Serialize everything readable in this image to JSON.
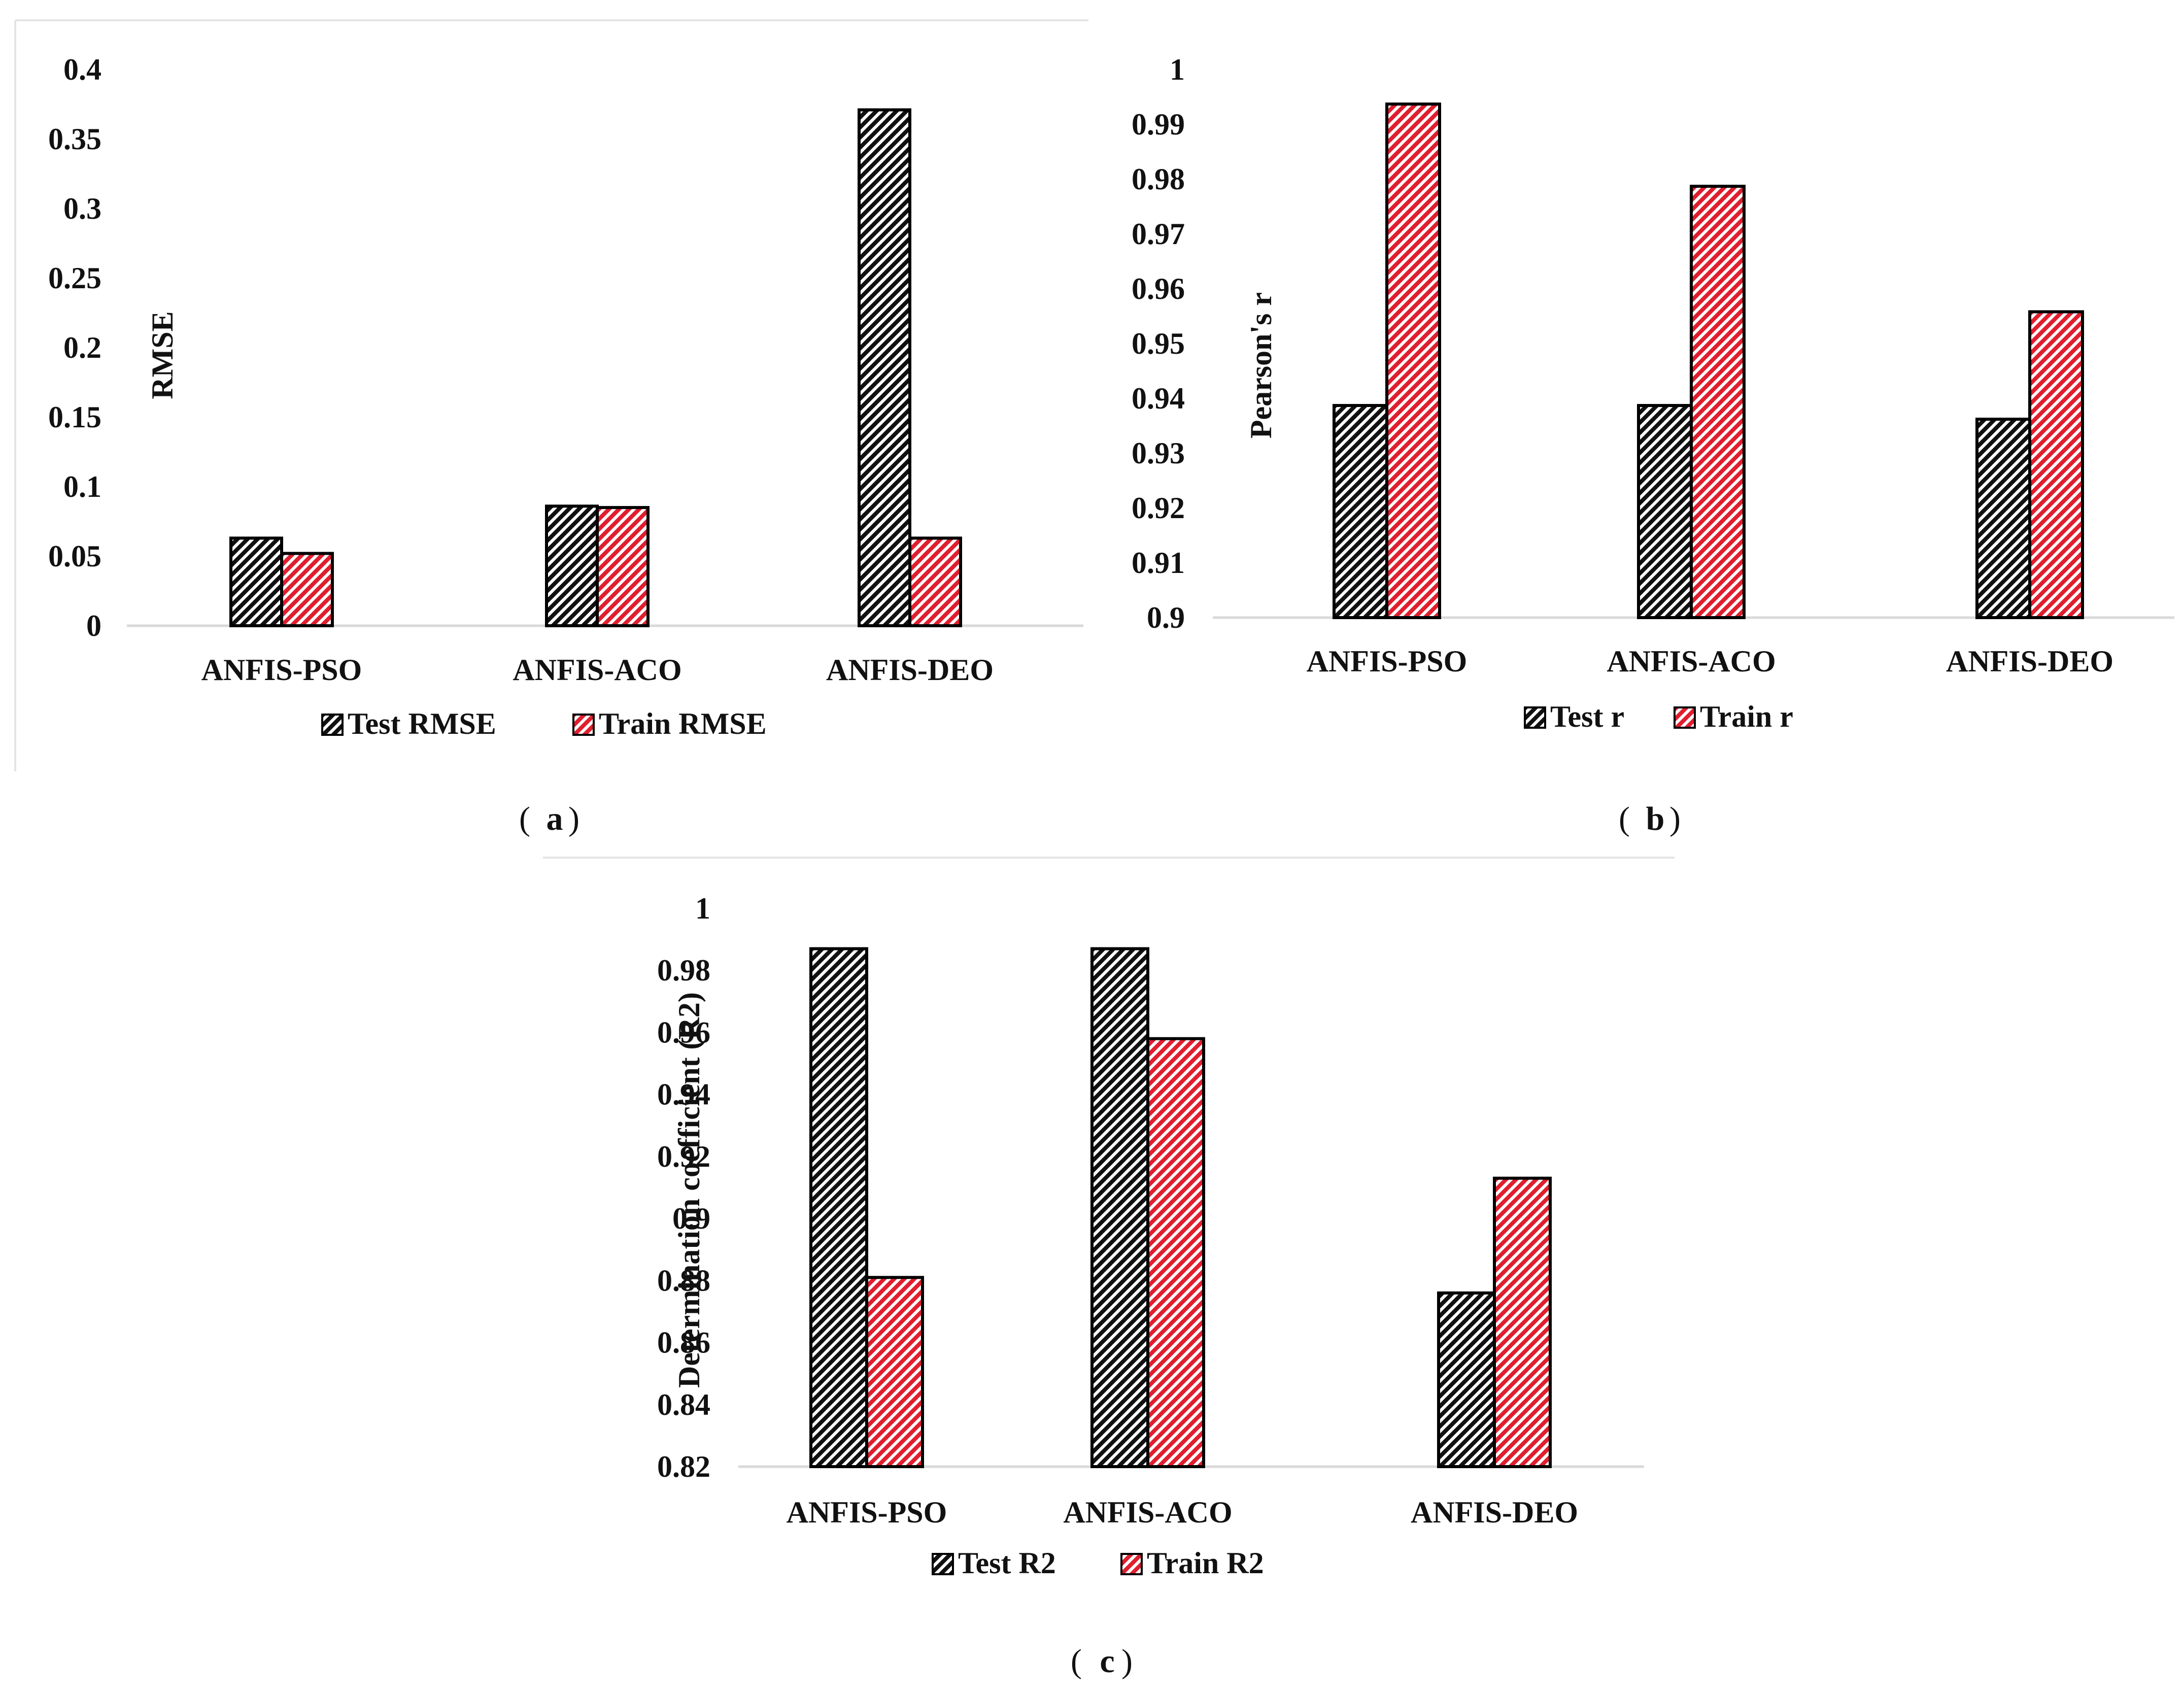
{
  "figure": {
    "colors": {
      "test": "#111111",
      "train": "#e01e2e",
      "axis": "#d9d9d9",
      "bar_outline": "#000000"
    }
  },
  "chart_data": [
    {
      "type": "bar",
      "id": "a",
      "caption": "a",
      "title": "",
      "xlabel": "",
      "ylabel": "RMSE",
      "categories": [
        "ANFIS-PSO",
        "ANFIS-ACO",
        "ANFIS-DEO"
      ],
      "series": [
        {
          "name": "Test RMSE",
          "values": [
            0.063,
            0.086,
            0.371
          ]
        },
        {
          "name": "Train RMSE",
          "values": [
            0.052,
            0.085,
            0.063
          ]
        }
      ],
      "ylim": [
        0,
        0.4
      ],
      "yticks": [
        0,
        0.05,
        0.1,
        0.15,
        0.2,
        0.25,
        0.3,
        0.35,
        0.4
      ],
      "ytick_labels": [
        "0",
        "0.05",
        "0.1",
        "0.15",
        "0.2",
        "0.25",
        "0.3",
        "0.35",
        "0.4"
      ],
      "grid": false,
      "legend": "bottom"
    },
    {
      "type": "bar",
      "id": "b",
      "caption": "b",
      "title": "",
      "xlabel": "",
      "ylabel": "Pearson's r",
      "categories": [
        "ANFIS-PSO",
        "ANFIS-ACO",
        "ANFIS-DEO"
      ],
      "series": [
        {
          "name": "Test r",
          "values": [
            0.9387,
            0.9387,
            0.9362
          ]
        },
        {
          "name": "Train r",
          "values": [
            0.9937,
            0.9787,
            0.9558
          ]
        }
      ],
      "ylim": [
        0.9,
        1
      ],
      "yticks": [
        0.9,
        0.91,
        0.92,
        0.93,
        0.94,
        0.95,
        0.96,
        0.97,
        0.98,
        0.99,
        1
      ],
      "ytick_labels": [
        "0.9",
        "0.91",
        "0.92",
        "0.93",
        "0.94",
        "0.95",
        "0.96",
        "0.97",
        "0.98",
        "0.99",
        "1"
      ],
      "grid": false,
      "legend": "bottom"
    },
    {
      "type": "bar",
      "id": "c",
      "caption": "c",
      "title": "",
      "xlabel": "",
      "ylabel": "Determination coefficient (R2)",
      "categories": [
        "ANFIS-PSO",
        "ANFIS-ACO",
        "ANFIS-DEO"
      ],
      "series": [
        {
          "name": "Test R2",
          "values": [
            0.987,
            0.987,
            0.876
          ]
        },
        {
          "name": "Train R2",
          "values": [
            0.881,
            0.958,
            0.913
          ]
        }
      ],
      "ylim": [
        0.82,
        1
      ],
      "yticks": [
        0.82,
        0.84,
        0.86,
        0.88,
        0.9,
        0.92,
        0.94,
        0.96,
        0.98,
        1
      ],
      "ytick_labels": [
        "0.82",
        "0.84",
        "0.86",
        "0.88",
        "0.9",
        "0.92",
        "0.94",
        "0.96",
        "0.98",
        "1"
      ],
      "grid": false,
      "legend": "bottom"
    }
  ]
}
